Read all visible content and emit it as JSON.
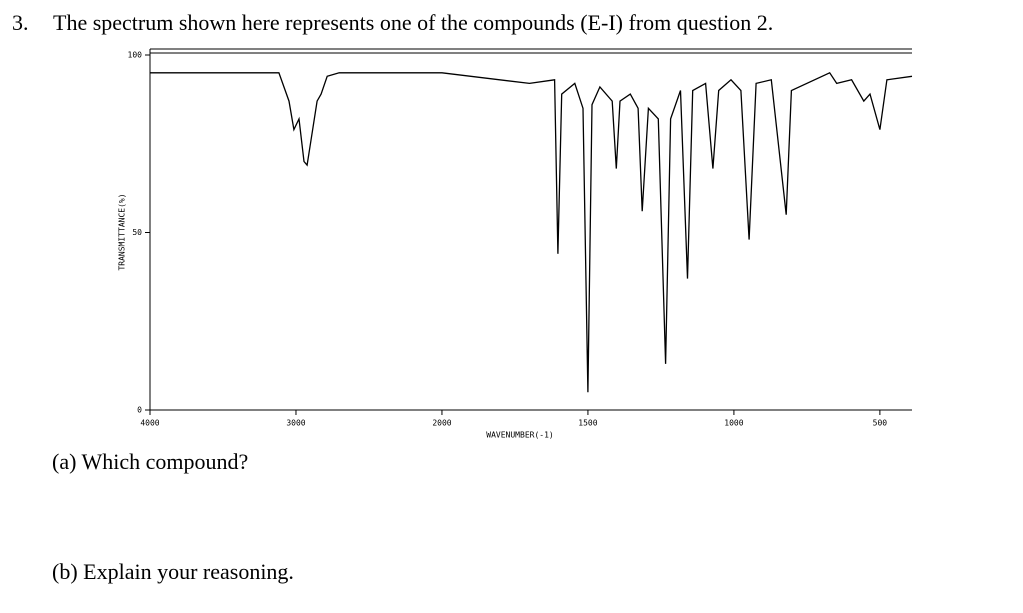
{
  "question": {
    "number": "3.",
    "text": "The spectrum shown here represents one of the compounds (E-I) from question 2.",
    "parts": [
      "(a) Which compound?",
      "(b) Explain your reasoning."
    ]
  },
  "chart_data": {
    "type": "line",
    "xlabel": "WAVENUMBER(-1)",
    "ylabel": "TRANSMITTANCE(%)",
    "xlim": [
      4000,
      390
    ],
    "xticks": [
      4000,
      3000,
      2000,
      1500,
      1000,
      500
    ],
    "ylim": [
      0,
      100
    ],
    "yticks": [
      0,
      50,
      100
    ],
    "color": "#000000",
    "x": [
      4000,
      3117,
      3048,
      3014,
      2979,
      2945,
      2924,
      2897,
      2855,
      2828,
      2786,
      2704,
      2000,
      1700,
      1614,
      1603,
      1590,
      1545,
      1517,
      1500,
      1486,
      1459,
      1417,
      1403,
      1390,
      1355,
      1328,
      1314,
      1293,
      1259,
      1234,
      1217,
      1183,
      1159,
      1141,
      1097,
      1072,
      1052,
      1010,
      976,
      948,
      924,
      872,
      821,
      803,
      672,
      648,
      597,
      555,
      534,
      500,
      476,
      390
    ],
    "values": [
      95,
      95,
      87,
      79,
      82,
      70,
      69,
      76,
      87,
      89,
      94,
      95,
      95,
      92,
      93,
      44,
      89,
      92,
      85,
      5,
      86,
      91,
      87,
      68,
      87,
      89,
      85,
      56,
      85,
      82,
      13,
      82,
      90,
      37,
      90,
      92,
      68,
      90,
      93,
      90,
      48,
      92,
      93,
      55,
      90,
      95,
      92,
      93,
      87,
      89,
      79,
      93,
      94
    ]
  }
}
